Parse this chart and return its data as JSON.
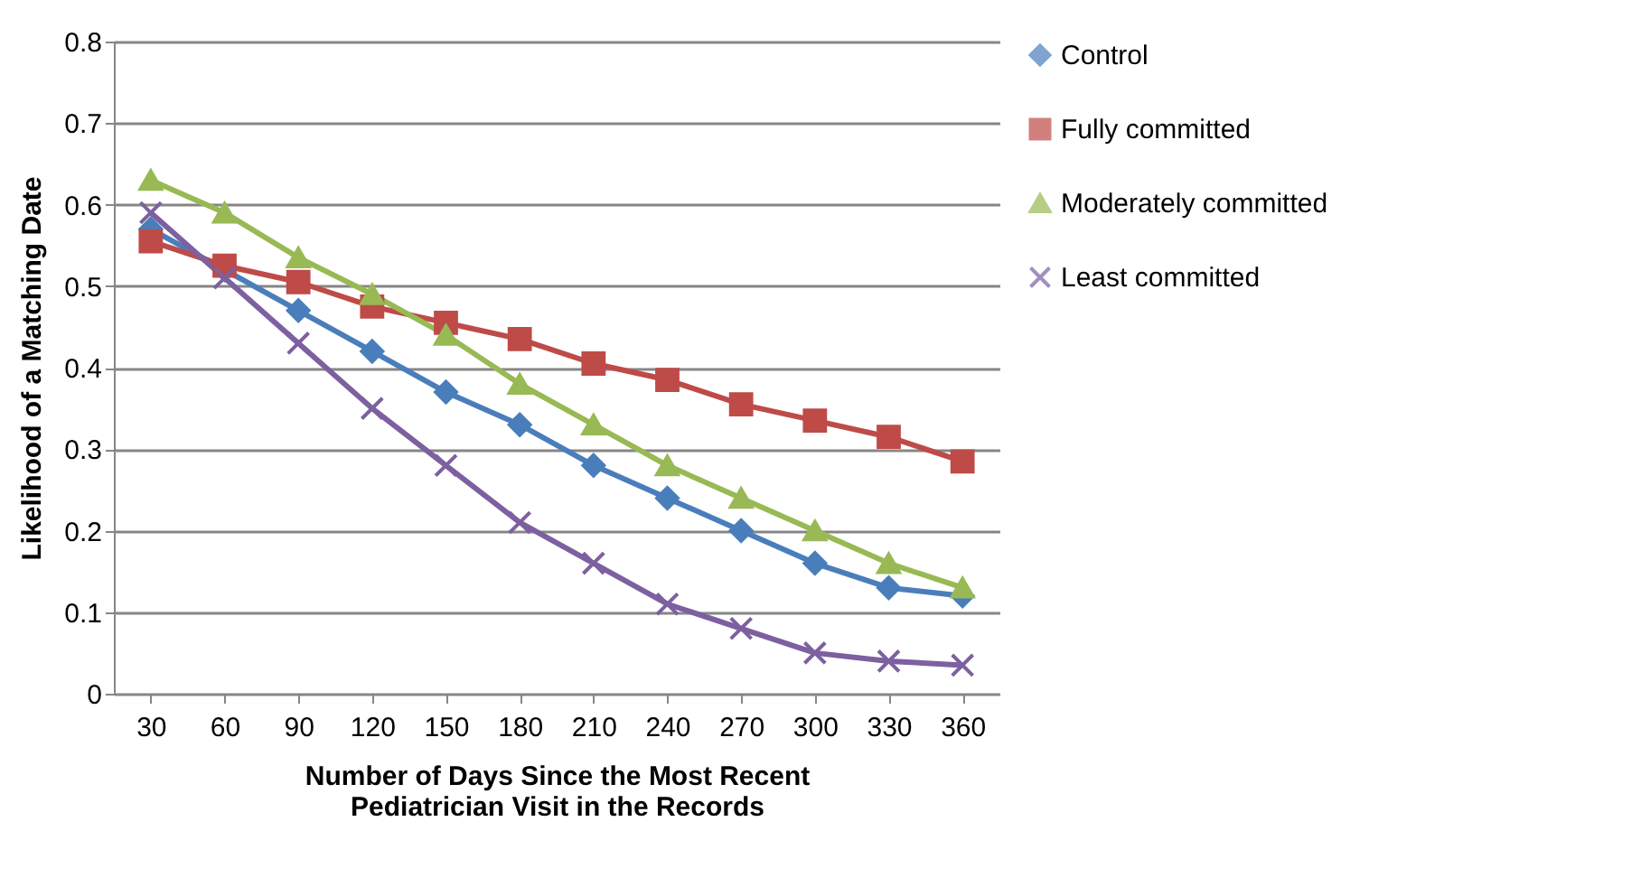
{
  "chart_data": {
    "type": "line",
    "xlabel": "Number of Days Since the Most Recent\nPediatrician Visit in the Records",
    "ylabel": "Likelihood  of a Matching Date",
    "categories": [
      "30",
      "60",
      "90",
      "120",
      "150",
      "180",
      "210",
      "240",
      "270",
      "300",
      "330",
      "360"
    ],
    "series": [
      {
        "name": "Control",
        "color": "#4a7ebb",
        "marker": "diamond",
        "values": [
          0.57,
          0.52,
          0.47,
          0.42,
          0.37,
          0.33,
          0.28,
          0.24,
          0.2,
          0.16,
          0.13,
          0.12
        ]
      },
      {
        "name": "Fully committed",
        "color": "#be4b48",
        "marker": "square",
        "values": [
          0.555,
          0.525,
          0.505,
          0.475,
          0.455,
          0.435,
          0.405,
          0.385,
          0.355,
          0.335,
          0.315,
          0.285
        ]
      },
      {
        "name": "Moderately committed",
        "color": "#98b954",
        "marker": "triangle",
        "values": [
          0.63,
          0.59,
          0.535,
          0.49,
          0.44,
          0.38,
          0.33,
          0.28,
          0.24,
          0.2,
          0.16,
          0.13
        ]
      },
      {
        "name": "Least committed",
        "color": "#7d60a0",
        "marker": "cross",
        "values": [
          0.59,
          0.51,
          0.43,
          0.35,
          0.28,
          0.21,
          0.16,
          0.11,
          0.08,
          0.05,
          0.04,
          0.035
        ]
      }
    ],
    "ylim": [
      0,
      0.8
    ],
    "yticks": [
      0,
      0.1,
      0.2,
      0.3,
      0.4,
      0.5,
      0.6,
      0.7,
      0.8
    ],
    "grid": "y",
    "legend": "right",
    "line_style": "solid"
  }
}
